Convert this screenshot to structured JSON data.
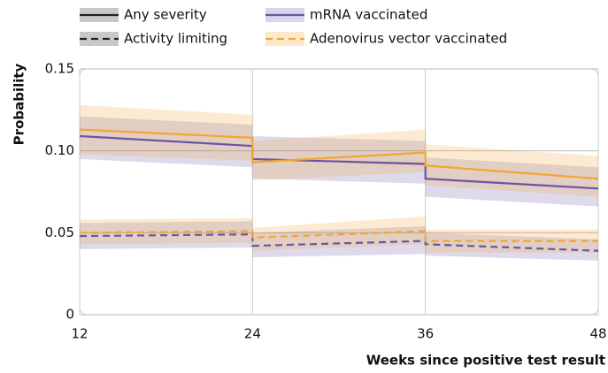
{
  "chart_data": {
    "type": "line",
    "x": [
      12,
      24,
      24,
      36,
      36,
      48
    ],
    "xlim": [
      12,
      48
    ],
    "xticks": [
      12,
      24,
      36,
      48
    ],
    "ylim": [
      0,
      0.15
    ],
    "yticks": [
      0,
      0.05,
      {
        "value": 0.1,
        "label": "0.10"
      },
      0.15
    ],
    "grid": true,
    "y_label": "Probability",
    "x_label": "Weeks since positive test result",
    "legend": [
      {
        "name": "Any severity",
        "color": "#222222",
        "dash": false
      },
      {
        "name": "mRNA vaccinated",
        "color": "#6b55a3",
        "dash": false
      },
      {
        "name": "Activity limiting",
        "color": "#222222",
        "dash": true
      },
      {
        "name": "Adenovirus vector vaccinated",
        "color": "#f2a630",
        "dash": true
      }
    ],
    "series": [
      {
        "color": "#6b55a3",
        "dash": false,
        "values": [
          0.109,
          0.103,
          0.095,
          0.092,
          0.083,
          0.077
        ],
        "lower": [
          0.095,
          0.09,
          0.083,
          0.08,
          0.072,
          0.066
        ],
        "upper": [
          0.121,
          0.116,
          0.109,
          0.106,
          0.096,
          0.09
        ]
      },
      {
        "color": "#f2a630",
        "dash": false,
        "values": [
          0.113,
          0.108,
          0.093,
          0.099,
          0.091,
          0.083
        ],
        "lower": [
          0.098,
          0.094,
          0.082,
          0.087,
          0.079,
          0.072
        ],
        "upper": [
          0.128,
          0.122,
          0.106,
          0.113,
          0.104,
          0.097
        ]
      },
      {
        "color": "#6b55a3",
        "dash": true,
        "values": [
          0.048,
          0.049,
          0.042,
          0.045,
          0.043,
          0.039
        ],
        "lower": [
          0.04,
          0.041,
          0.035,
          0.037,
          0.036,
          0.033
        ],
        "upper": [
          0.056,
          0.057,
          0.05,
          0.054,
          0.05,
          0.046
        ]
      },
      {
        "color": "#f2a630",
        "dash": true,
        "values": [
          0.05,
          0.051,
          0.047,
          0.051,
          0.045,
          0.045
        ],
        "lower": [
          0.043,
          0.044,
          0.039,
          0.043,
          0.038,
          0.038
        ],
        "upper": [
          0.058,
          0.059,
          0.053,
          0.06,
          0.052,
          0.052
        ]
      }
    ]
  }
}
